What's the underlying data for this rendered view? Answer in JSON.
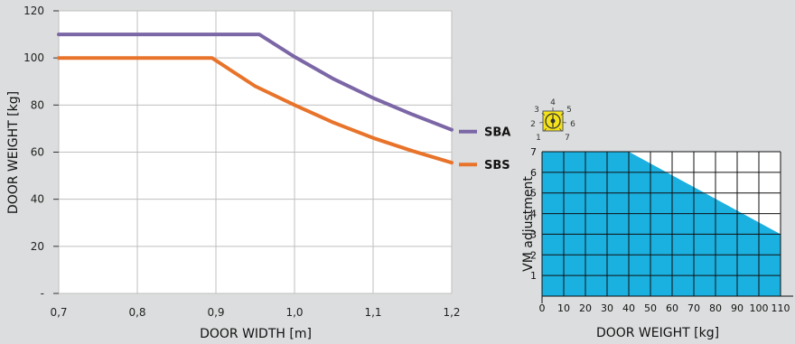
{
  "background_color": "#dcddde",
  "chart_data": [
    {
      "type": "line",
      "xlabel": "DOOR WIDTH [m]",
      "ylabel": "DOOR WEIGHT [kg]",
      "xlim": [
        0.7,
        1.2
      ],
      "ylim": [
        0,
        120
      ],
      "xticks": [
        "0,7",
        "0,8",
        "0,9",
        "1,0",
        "1,1",
        "1,2"
      ],
      "xtick_values": [
        0.7,
        0.8,
        0.9,
        1.0,
        1.1,
        1.2
      ],
      "yticks": [
        "-",
        "20",
        "40",
        "60",
        "80",
        "100",
        "120"
      ],
      "ytick_values": [
        0,
        20,
        40,
        60,
        80,
        100,
        120
      ],
      "grid": true,
      "legend_position": "right, at line ends",
      "series": [
        {
          "name": "SBA",
          "color": "#7b66a6",
          "x": [
            0.7,
            0.955,
            1.0,
            1.05,
            1.1,
            1.15,
            1.2
          ],
          "y": [
            110,
            110,
            100.5,
            91,
            83,
            76,
            69.5
          ]
        },
        {
          "name": "SBS",
          "color": "#e8732a",
          "x": [
            0.7,
            0.895,
            0.95,
            1.0,
            1.05,
            1.1,
            1.15,
            1.2
          ],
          "y": [
            100,
            100,
            88,
            80,
            72.5,
            66,
            60.5,
            55.5
          ]
        }
      ]
    },
    {
      "type": "area",
      "xlabel": "DOOR WEIGHT [kg]",
      "ylabel": "VM adjustment",
      "xlim": [
        0,
        110
      ],
      "ylim": [
        0,
        7
      ],
      "xticks": [
        "0",
        "10",
        "20",
        "30",
        "40",
        "50",
        "60",
        "70",
        "80",
        "90",
        "100",
        "110"
      ],
      "xtick_values": [
        0,
        10,
        20,
        30,
        40,
        50,
        60,
        70,
        80,
        90,
        100,
        110
      ],
      "yticks": [
        "1",
        "2",
        "3",
        "4",
        "5",
        "6",
        "7"
      ],
      "ytick_values": [
        1,
        2,
        3,
        4,
        5,
        6,
        7
      ],
      "grid": true,
      "fill_color": "#1ab0e0",
      "x": [
        0,
        40,
        110
      ],
      "y": [
        7,
        7,
        3
      ]
    }
  ],
  "dial_icon": {
    "name": "vm-adjustment-dial-icon",
    "color": "#f4e21b",
    "labels": [
      "1",
      "2",
      "3",
      "4",
      "5",
      "6",
      "7"
    ]
  }
}
